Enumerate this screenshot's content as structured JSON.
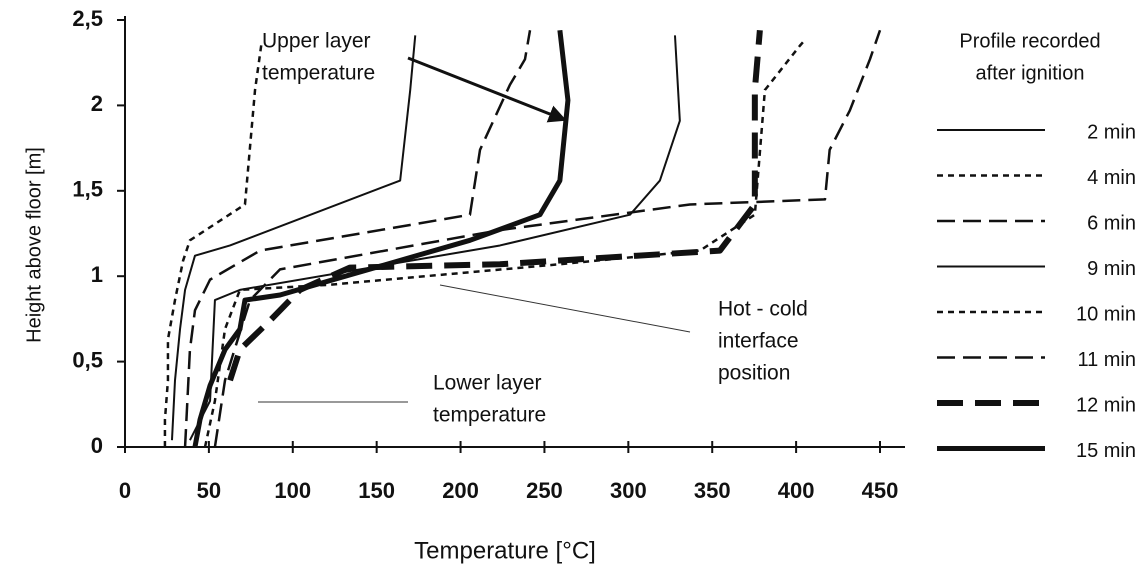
{
  "chart_data": {
    "type": "line",
    "x_label": "Temperature  [°C]",
    "y_label": "Height above floor [m]",
    "legend_title": [
      "Profile recorded",
      "after  ignition"
    ],
    "xlim": [
      0,
      450
    ],
    "xticks": [
      0,
      50,
      100,
      150,
      200,
      250,
      300,
      350,
      400,
      450
    ],
    "ylim": [
      0,
      2.5
    ],
    "yticks": [
      0,
      {
        "value": 0.5,
        "label": "0,5"
      },
      1,
      {
        "value": 1.5,
        "label": "1,5"
      },
      2,
      {
        "value": 2.5,
        "label": "2,5"
      }
    ],
    "color": "#111111",
    "series": [
      {
        "name": "2 min",
        "style": "thin-solid",
        "x": [
          28,
          29.8,
          32.8,
          35.8,
          41.7,
          62.6,
          164,
          170,
          173
        ],
        "values": [
          0.04,
          0.39,
          0.69,
          0.92,
          1.12,
          1.18,
          1.56,
          2.09,
          2.41
        ]
      },
      {
        "name": "4 min",
        "style": "dotted",
        "x": [
          23.8,
          23.8,
          25.6,
          25.6,
          29.8,
          34.6,
          38.7,
          71.5,
          77.5,
          81.6
        ],
        "values": [
          0,
          0.16,
          0.39,
          0.63,
          0.86,
          1.09,
          1.21,
          1.42,
          2.09,
          2.38
        ]
      },
      {
        "name": "6 min",
        "style": "dashed",
        "x": [
          35.8,
          38.7,
          41.7,
          50.7,
          80.5,
          205.6,
          211.6,
          229.4,
          238.4,
          241.4
        ],
        "values": [
          0,
          0.57,
          0.8,
          0.98,
          1.15,
          1.36,
          1.74,
          2.12,
          2.27,
          2.44
        ]
      },
      {
        "name": "9 min",
        "style": "thin-solid",
        "x": [
          38.7,
          50.7,
          53.6,
          68.5,
          223.5,
          301,
          318.8,
          330.7,
          327.8
        ],
        "values": [
          0.04,
          0.27,
          0.86,
          0.92,
          1.18,
          1.36,
          1.56,
          1.91,
          2.41
        ]
      },
      {
        "name": "10 min",
        "style": "dotted",
        "x": [
          47.7,
          53.6,
          59.6,
          68.5,
          122,
          259,
          342.7,
          375.4,
          381.4,
          402.3,
          405
        ],
        "values": [
          0,
          0.27,
          0.69,
          0.92,
          0.95,
          1.07,
          1.15,
          1.36,
          2.09,
          2.35,
          2.38
        ]
      },
      {
        "name": "11 min",
        "style": "dashed",
        "x": [
          53.6,
          59.6,
          74.5,
          92.4,
          223.5,
          336.7,
          417.2,
          420,
          432,
          444,
          450
        ],
        "values": [
          0,
          0.39,
          0.86,
          1.04,
          1.27,
          1.42,
          1.45,
          1.74,
          1.97,
          2.27,
          2.44
        ]
      },
      {
        "name": "12 min",
        "style": "thick-dashed",
        "x": [
          62.6,
          68.5,
          86.4,
          104.3,
          134,
          223.5,
          354.6,
          375.4,
          375.4,
          378.4
        ],
        "values": [
          0.39,
          0.57,
          0.74,
          0.92,
          1.05,
          1.07,
          1.15,
          1.42,
          2.09,
          2.44
        ]
      },
      {
        "name": "15 min",
        "style": "thick-solid",
        "x": [
          41.7,
          44.7,
          50.7,
          59.6,
          68.5,
          71.5,
          92.4,
          205.6,
          247.3,
          259.2,
          264,
          259.2
        ],
        "values": [
          0,
          0.16,
          0.36,
          0.57,
          0.69,
          0.86,
          0.89,
          1.21,
          1.36,
          1.56,
          2.03,
          2.44
        ]
      }
    ],
    "annotations": [
      {
        "lines": [
          "Upper layer",
          "temperature"
        ]
      },
      {
        "lines": [
          "Hot - cold",
          "interface",
          "position"
        ]
      },
      {
        "lines": [
          "Lower layer",
          "temperature"
        ]
      }
    ]
  }
}
